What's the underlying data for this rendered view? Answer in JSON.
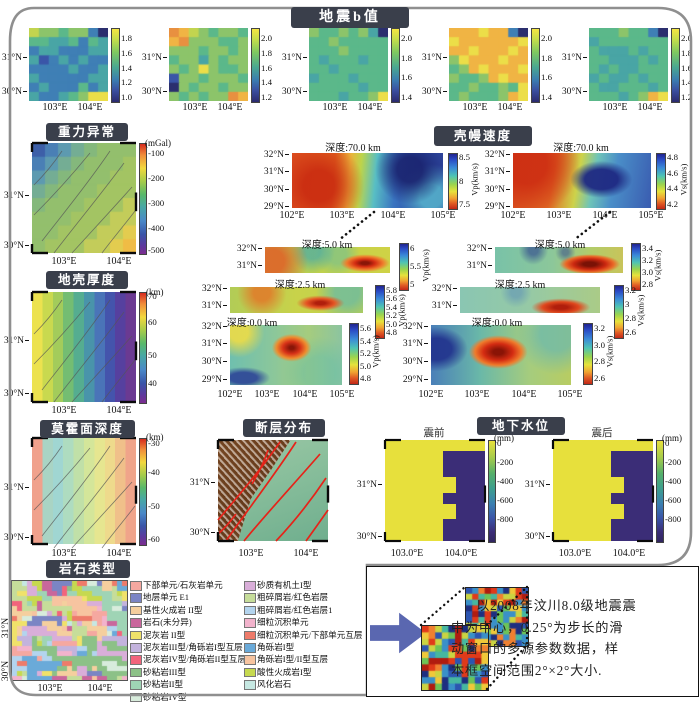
{
  "sections": {
    "b_value": {
      "title": "地震b值",
      "ylabels": [
        "31°N",
        "30°N"
      ],
      "xlabels": [
        "103°E",
        "104°E"
      ],
      "palette": [
        "#2b2f6e",
        "#3a55a8",
        "#3f7fb5",
        "#49a5a5",
        "#5bb88a",
        "#8cc46a",
        "#c2d44f",
        "#ecde48",
        "#f0b444",
        "#e89040"
      ],
      "panels": [
        {
          "cbar_ticks": [
            "1.8",
            "1.6",
            "1.4",
            "1.2",
            "1.0"
          ],
          "cells": [
            "65545520",
            "44334243",
            "23322233",
            "31232322",
            "22223223",
            "32222233",
            "23222423",
            "32234577"
          ]
        },
        {
          "cbar_ticks": [
            "2.0",
            "1.8",
            "1.6",
            "1.4",
            "1.2"
          ],
          "cells": [
            "98654554",
            "89555445",
            "55545545",
            "45535455",
            "54575445",
            "15545554",
            "05455455",
            "54545598"
          ]
        },
        {
          "cbar_ticks": [
            "2.0",
            "1.8",
            "1.6",
            "1.4"
          ],
          "cells": [
            "54454530",
            "44544444",
            "44454444",
            "43444344",
            "44344444",
            "34443444",
            "44444344",
            "44434457"
          ]
        },
        {
          "cbar_ticks": [
            "2.0",
            "1.8",
            "1.6",
            "1.4"
          ],
          "cells": [
            "88878820",
            "78888887",
            "88788878",
            "57888788",
            "45878887",
            "54458788",
            "44544547",
            "45444587"
          ]
        },
        {
          "cbar_ticks": [
            "2.0",
            "1.8",
            "1.6",
            "1.4",
            "1.2"
          ],
          "cells": [
            "44454420",
            "34444444",
            "43334344",
            "44333434",
            "43433444",
            "34334344",
            "43344434",
            "44434587"
          ]
        }
      ]
    },
    "gravity": {
      "title": "重力异常",
      "unit": "(mGal)",
      "cbar_ticks": [
        "-100",
        "-200",
        "-300",
        "-400",
        "-500"
      ],
      "ylabels": [
        "31°N",
        "30°N"
      ],
      "xlabels": [
        "103°E",
        "104°E"
      ],
      "palette": [
        "#3d5fa8",
        "#4a7fb5",
        "#5d9ab0",
        "#74ad94",
        "#84b87c",
        "#93bf6d",
        "#a3c463",
        "#c3cc5a",
        "#e3cc4f",
        "#f0bc45"
      ],
      "cells": [
        "01234555",
        "12345556",
        "23455566",
        "34555666",
        "45556667",
        "55566677",
        "55666778",
        "56667789"
      ]
    },
    "velocity": {
      "title": "壳幔速度",
      "vp": {
        "label": "Vp(km/s)",
        "panels": [
          {
            "depth": "深度:70.0 km",
            "ylabels": [
              "32°N",
              "31°N",
              "30°N",
              "29°N"
            ],
            "xlabels": [
              "102°E",
              "103°E",
              "104°E",
              "105°E"
            ],
            "cbar_ticks": [
              "8.5",
              "8",
              "7.5"
            ]
          },
          {
            "depth": "深度:5.0 km",
            "ylabels": [
              "32°N",
              "31°N"
            ],
            "xlabels": [],
            "cbar_ticks": [
              "6",
              "5.5",
              "5"
            ]
          },
          {
            "depth": "深度:2.5 km",
            "ylabels": [
              "32°N",
              "31°N"
            ],
            "xlabels": [],
            "cbar_ticks": [
              "5.8",
              "5.6",
              "5.4",
              "5.2",
              "5.0",
              "4.8"
            ]
          },
          {
            "depth": "深度:0.0 km",
            "ylabels": [
              "32°N",
              "31°N",
              "30°N",
              "29°N"
            ],
            "xlabels": [
              "102°E",
              "103°E",
              "104°E",
              "105°E"
            ],
            "cbar_ticks": [
              "5.6",
              "5.4",
              "5.2",
              "5.0",
              "4.8"
            ]
          }
        ]
      },
      "vs": {
        "label": "Vs(km/s)",
        "panels": [
          {
            "depth": "深度:70.0 km",
            "ylabels": [
              "32°N",
              "31°N",
              "30°N",
              "29°N"
            ],
            "xlabels": [
              "102°E",
              "103°E",
              "104°E",
              "105°E"
            ],
            "cbar_ticks": [
              "4.8",
              "4.6",
              "4.4",
              "4.2"
            ]
          },
          {
            "depth": "深度:5.0 km",
            "ylabels": [
              "32°N",
              "31°N"
            ],
            "xlabels": [],
            "cbar_ticks": [
              "3.4",
              "3.2",
              "3.0",
              "2.8"
            ]
          },
          {
            "depth": "深度:2.5 km",
            "ylabels": [
              "32°N",
              "31°N"
            ],
            "xlabels": [],
            "cbar_ticks": [
              "3.2",
              "3",
              "2.8",
              "2.6"
            ]
          },
          {
            "depth": "深度:0.0 km",
            "ylabels": [
              "32°N",
              "31°N",
              "30°N",
              "29°N"
            ],
            "xlabels": [
              "102°E",
              "103°E",
              "104°E",
              "105°E"
            ],
            "cbar_ticks": [
              "3.2",
              "3.0",
              "2.8",
              "2.6"
            ]
          }
        ]
      }
    },
    "crust": {
      "title": "地壳厚度",
      "unit": "(km)",
      "cbar_ticks": [
        "70",
        "60",
        "50",
        "40"
      ],
      "ylabels": [
        "31°N",
        "30°N"
      ],
      "xlabels": [
        "103°E",
        "104°E"
      ],
      "bands": [
        "#ece24f",
        "#c9d94f",
        "#a3cc5b",
        "#74bd72",
        "#55ad90",
        "#4994aa",
        "#4a74b8",
        "#4454ac",
        "#56409f",
        "#6b3a92"
      ]
    },
    "moho": {
      "title": "莫霍面深度",
      "unit": "(km)",
      "cbar_ticks": [
        "-30",
        "-40",
        "-50",
        "-60"
      ],
      "ylabels": [
        "31°N",
        "30°N"
      ],
      "xlabels": [
        "103°E",
        "104°E"
      ],
      "bands": [
        "#f0a18c",
        "#a9d4c4",
        "#a0d6d2",
        "#aedcc0",
        "#c0e0a8",
        "#d4e69a",
        "#e6e690",
        "#eeda8c",
        "#f0c08a",
        "#f0a48a"
      ]
    },
    "faults": {
      "title": "断层分布",
      "ylabels": [
        "31°N",
        "30°N"
      ],
      "xlabels": [
        "103°E",
        "104°E"
      ]
    },
    "groundwater": {
      "title": "地下水位",
      "unit": "(mm)",
      "cbar_ticks": [
        "0",
        "-200",
        "-400",
        "-600",
        "-800"
      ],
      "ylabels": [
        "31°N",
        "30°N"
      ],
      "xlabels": [
        "103.0°E",
        "104.0°E"
      ],
      "panels": [
        {
          "label": "震前"
        },
        {
          "label": "震后"
        }
      ],
      "colors": {
        "high": "#e7e03c",
        "low": "#3b2d77"
      }
    },
    "rock": {
      "title": "岩石类型",
      "ylabels": [
        "31°N",
        "30°N"
      ],
      "xlabels": [
        "103°E",
        "104°E"
      ],
      "legend_col1": [
        {
          "label": "下部单元/石灰岩单元",
          "color": "#f5a8a0"
        },
        {
          "label": "地层单元 E1",
          "color": "#7b85c4"
        },
        {
          "label": "基性火成岩 II型",
          "color": "#f5cf9e"
        },
        {
          "label": "岩石(未分异)",
          "color": "#c9679c"
        },
        {
          "label": "泥灰岩 II型",
          "color": "#f0e26a"
        },
        {
          "label": "泥灰岩III型/角砾岩I型互层",
          "color": "#c3b3dd"
        },
        {
          "label": "泥灰岩IV型/角砾岩II型互层",
          "color": "#f2647c"
        },
        {
          "label": "砂粘岩III型",
          "color": "#8cc187"
        },
        {
          "label": "砂粘岩II型",
          "color": "#9fd4b5"
        },
        {
          "label": "砂粘岩IV型",
          "color": "#d8ecdc"
        }
      ],
      "legend_col2": [
        {
          "label": "砂质有机土I型",
          "color": "#d9aed9"
        },
        {
          "label": "粗碎屑岩/红色岩层",
          "color": "#c6dd9a"
        },
        {
          "label": "粗碎屑岩/红色岩层1",
          "color": "#b3d4ee"
        },
        {
          "label": "细粒沉积单元",
          "color": "#f2b3cc"
        },
        {
          "label": "细粒沉积单元/下部单元互层",
          "color": "#ee7b6a"
        },
        {
          "label": "角砾岩I型",
          "color": "#6aaad9"
        },
        {
          "label": "角砾岩I型/II型互层",
          "color": "#f7c4a0"
        },
        {
          "label": "酸性火成岩I型",
          "color": "#c6d94f"
        },
        {
          "label": "风化岩石",
          "color": "#c6e8e2"
        }
      ]
    },
    "annotation": {
      "arrow_color": "#5a67b0",
      "lines": [
        "以2008年汶川8.0级地震震",
        "中为中心，0.25°为步长的滑",
        "动窗口的多源参数数据，样",
        "本框空间范围2°×2°大小."
      ]
    }
  },
  "chart_data": [
    {
      "type": "heatmap",
      "title": "地震b值",
      "panels": 5,
      "x_range": [
        "103°E",
        "104°E"
      ],
      "y_range": [
        "30°N",
        "31°N"
      ],
      "colorbar_ranges": [
        [
          1.0,
          1.8
        ],
        [
          1.2,
          2.0
        ],
        [
          1.4,
          2.0
        ],
        [
          1.4,
          2.0
        ],
        [
          1.2,
          2.0
        ]
      ],
      "colormap": "viridis"
    },
    {
      "type": "heatmap",
      "title": "重力异常",
      "unit": "mGal",
      "x_range": [
        "103°E",
        "104°E"
      ],
      "y_range": [
        "30°N",
        "31°N"
      ],
      "colorbar_range": [
        -500,
        -100
      ],
      "colormap": "rainbow"
    },
    {
      "type": "heatmap",
      "title": "壳幔速度 Vp",
      "unit": "km/s",
      "depths_km": [
        70.0,
        5.0,
        2.5,
        0.0
      ],
      "x_range": [
        "102°E",
        "105°E"
      ],
      "y_range": [
        "29°N",
        "32°N"
      ],
      "colorbar_ranges": [
        [
          7.5,
          8.5
        ],
        [
          5.0,
          6.0
        ],
        [
          4.8,
          5.8
        ],
        [
          4.8,
          5.6
        ]
      ],
      "colormap": "jet"
    },
    {
      "type": "heatmap",
      "title": "壳幔速度 Vs",
      "unit": "km/s",
      "depths_km": [
        70.0,
        5.0,
        2.5,
        0.0
      ],
      "x_range": [
        "102°E",
        "105°E"
      ],
      "y_range": [
        "29°N",
        "32°N"
      ],
      "colorbar_ranges": [
        [
          4.2,
          4.8
        ],
        [
          2.8,
          3.4
        ],
        [
          2.6,
          3.2
        ],
        [
          2.6,
          3.2
        ]
      ],
      "colormap": "jet"
    },
    {
      "type": "heatmap",
      "title": "地壳厚度",
      "unit": "km",
      "x_range": [
        "103°E",
        "104°E"
      ],
      "y_range": [
        "30°N",
        "31°N"
      ],
      "colorbar_range": [
        40,
        70
      ],
      "colormap": "rainbow"
    },
    {
      "type": "heatmap",
      "title": "莫霍面深度",
      "unit": "km",
      "x_range": [
        "103°E",
        "104°E"
      ],
      "y_range": [
        "30°N",
        "31°N"
      ],
      "colorbar_range": [
        -60,
        -30
      ],
      "colormap": "rainbow"
    },
    {
      "type": "map",
      "title": "断层分布",
      "x_range": [
        "103°E",
        "104°E"
      ],
      "y_range": [
        "30°N",
        "31°N"
      ],
      "features": "shaded relief with red fault traces"
    },
    {
      "type": "heatmap",
      "title": "地下水位",
      "unit": "mm",
      "panels": [
        "震前",
        "震后"
      ],
      "x_range": [
        "103.0°E",
        "104.0°E"
      ],
      "y_range": [
        "30°N",
        "31°N"
      ],
      "colorbar_range": [
        -800,
        0
      ]
    },
    {
      "type": "map",
      "title": "岩石类型",
      "x_range": [
        "103°E",
        "104°E"
      ],
      "y_range": [
        "30°N",
        "31°N"
      ],
      "classes": 19
    }
  ]
}
